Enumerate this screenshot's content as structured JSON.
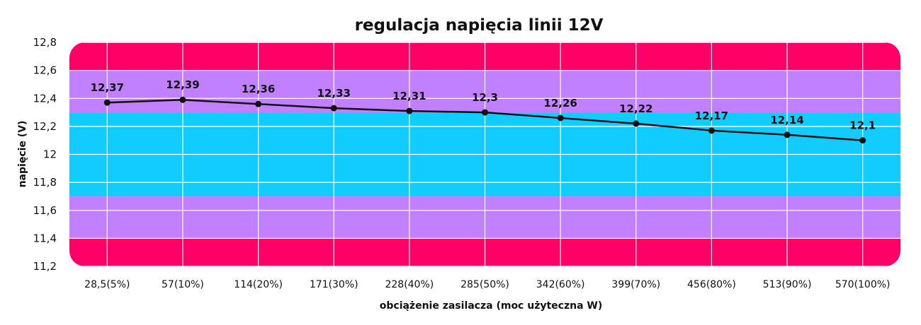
{
  "chart_data": {
    "type": "line",
    "title": "regulacja napięcia linii 12V",
    "xlabel": "obciążenie zasilacza (moc użyteczna W)",
    "ylabel": "napięcie (V)",
    "categories": [
      "28,5(5%)",
      "57(10%)",
      "114(20%)",
      "171(30%)",
      "228(40%)",
      "285(50%)",
      "342(60%)",
      "399(70%)",
      "456(80%)",
      "513(90%)",
      "570(100%)"
    ],
    "series": [
      {
        "values": [
          12.37,
          12.39,
          12.36,
          12.33,
          12.31,
          12.3,
          12.26,
          12.22,
          12.17,
          12.14,
          12.1
        ]
      }
    ],
    "data_labels": [
      "12,37",
      "12,39",
      "12,36",
      "12,33",
      "12,31",
      "12,3",
      "12,26",
      "12,22",
      "12,17",
      "12,14",
      "12,1"
    ],
    "ylim": [
      11.2,
      12.8
    ],
    "yticks": [
      11.2,
      11.4,
      11.6,
      11.8,
      12,
      12.2,
      12.4,
      12.6,
      12.8
    ],
    "ytick_labels": [
      "11,2",
      "11,4",
      "11,6",
      "11,8",
      "12",
      "12,2",
      "12,4",
      "12,6",
      "12,8"
    ],
    "grid": true,
    "bands": [
      {
        "from": 12.6,
        "to": 12.8,
        "color": "#ff0066"
      },
      {
        "from": 12.3,
        "to": 12.6,
        "color": "#c080ff"
      },
      {
        "from": 11.7,
        "to": 12.3,
        "color": "#12ccff"
      },
      {
        "from": 11.4,
        "to": 11.7,
        "color": "#c080ff"
      },
      {
        "from": 11.2,
        "to": 11.4,
        "color": "#ff0066"
      }
    ],
    "colors": {
      "line": "#111111",
      "grid": "#ffffff"
    }
  }
}
